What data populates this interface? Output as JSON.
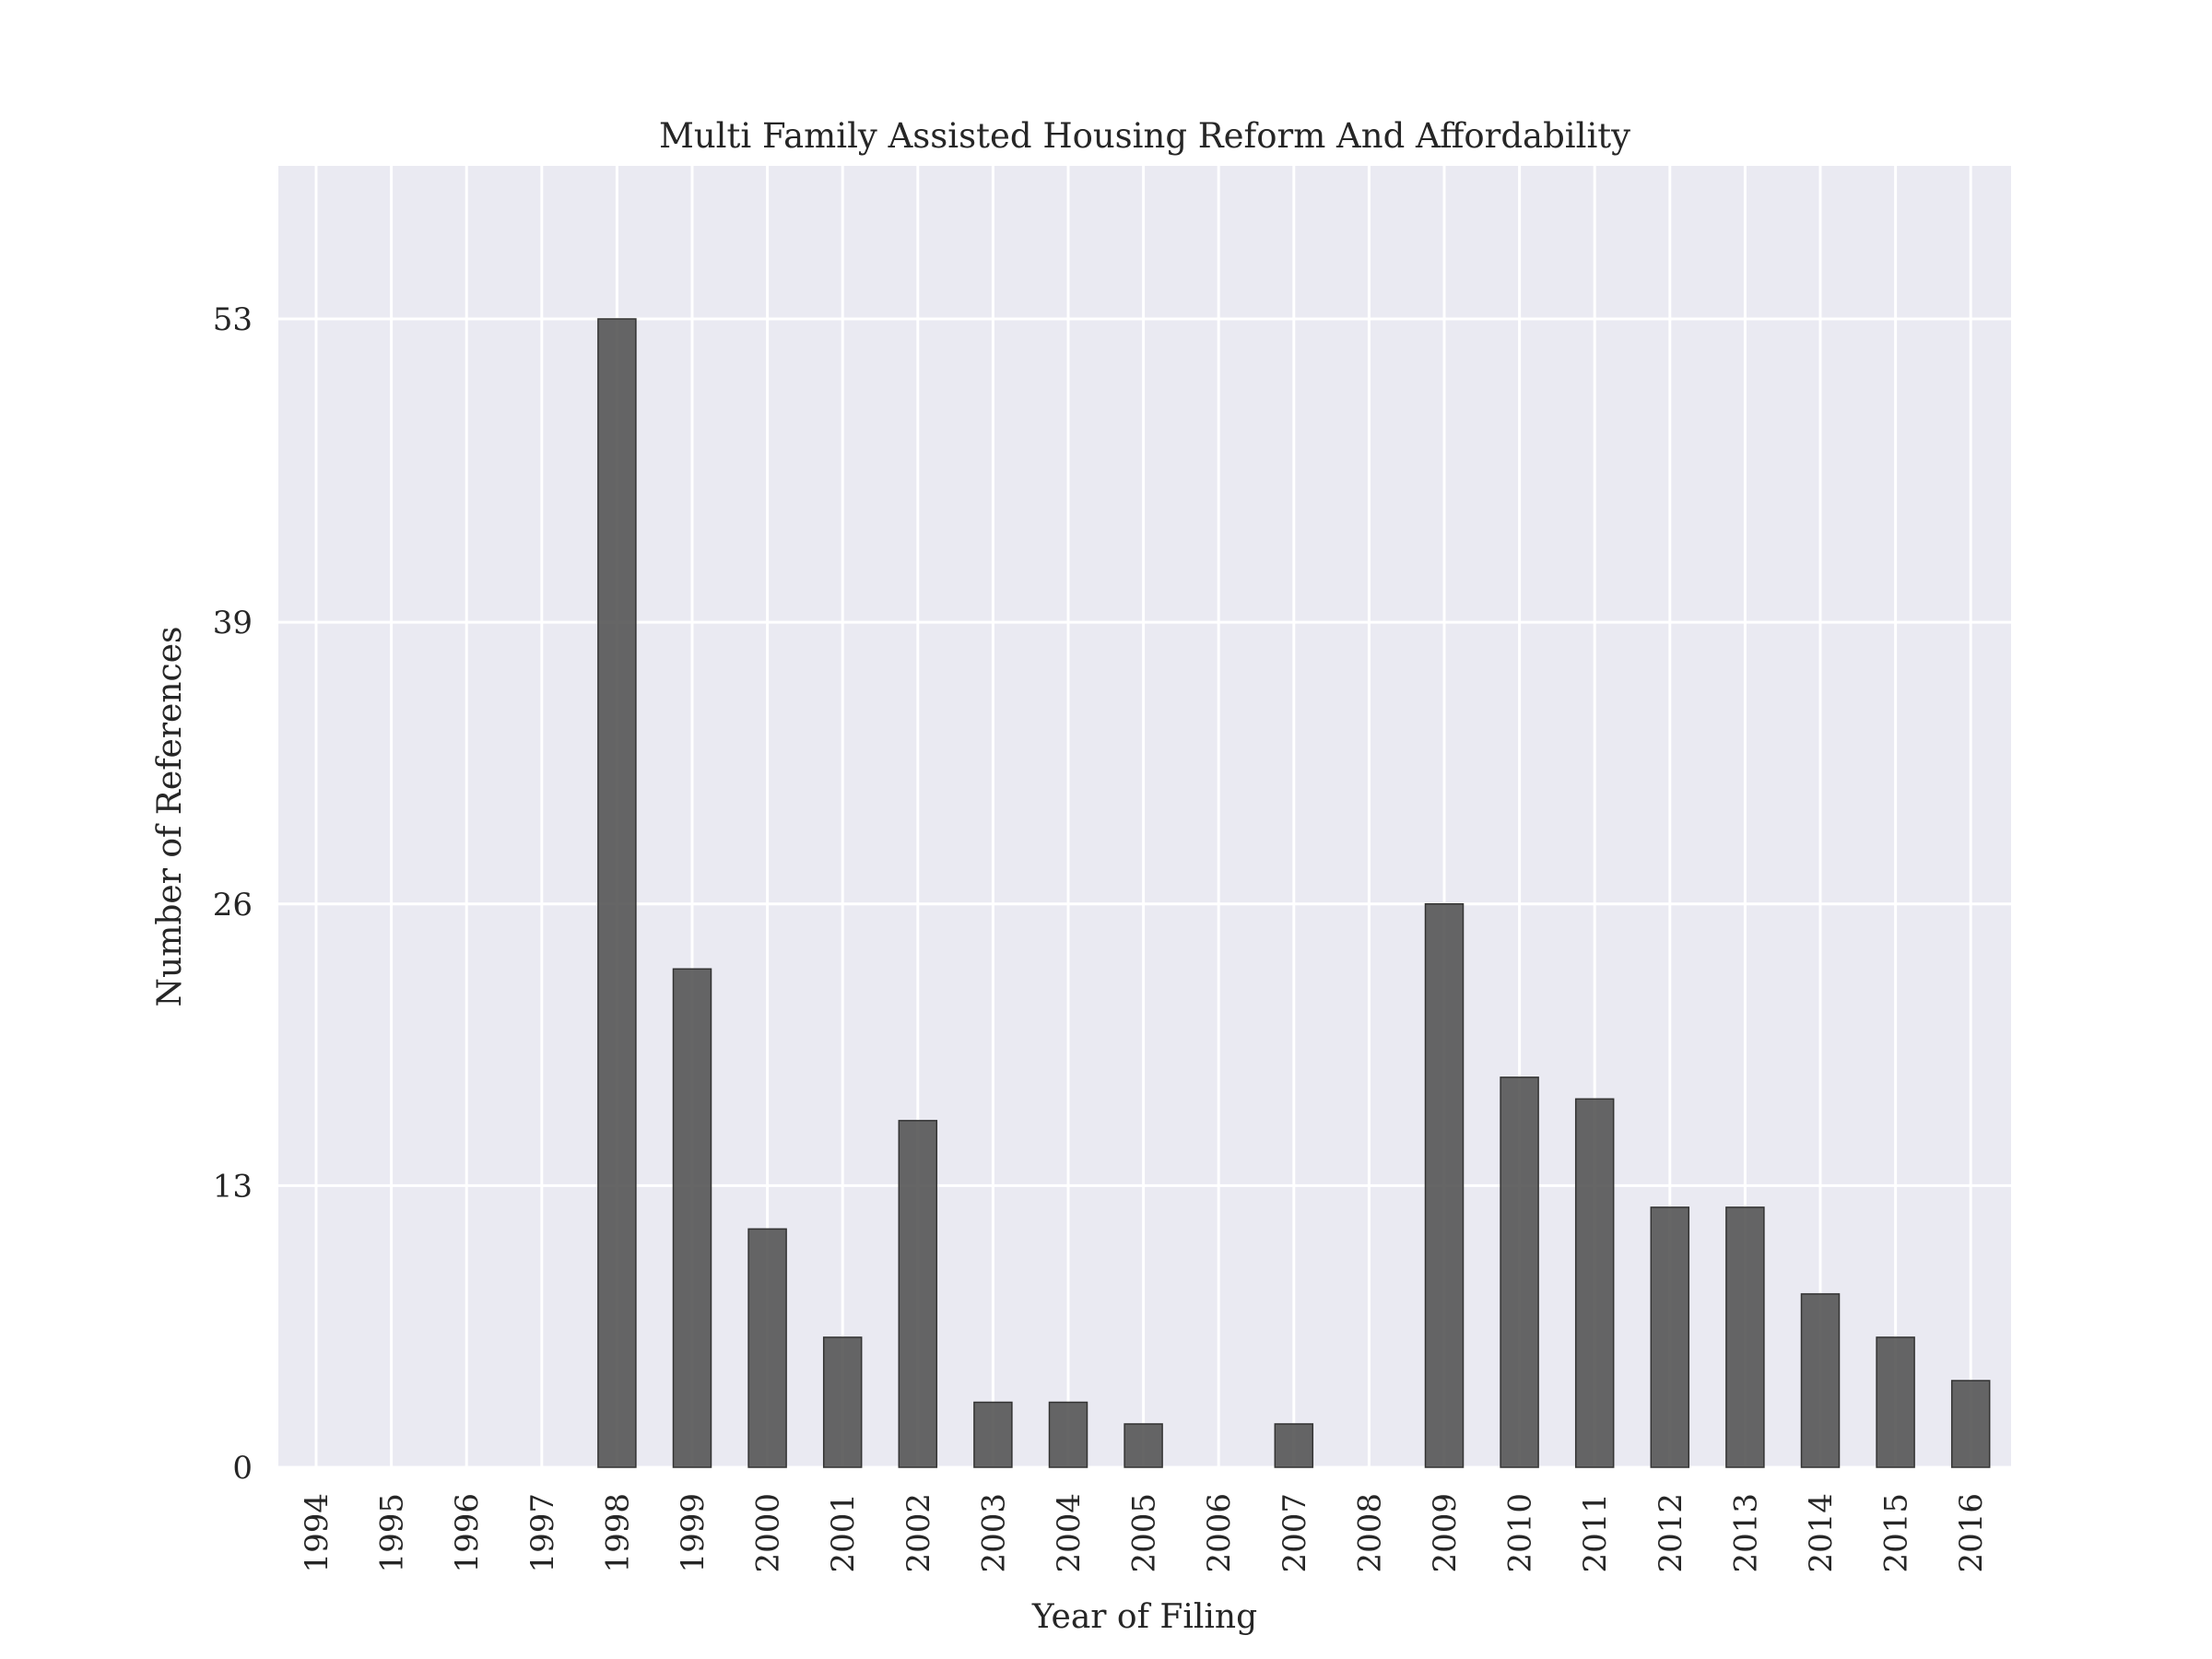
{
  "chart_data": {
    "type": "bar",
    "title": "Multi Family Assisted Housing Reform And Affordability",
    "xlabel": "Year of Filing",
    "ylabel": "Number of References",
    "categories": [
      "1994",
      "1995",
      "1996",
      "1997",
      "1998",
      "1999",
      "2000",
      "2001",
      "2002",
      "2003",
      "2004",
      "2005",
      "2006",
      "2007",
      "2008",
      "2009",
      "2010",
      "2011",
      "2012",
      "2013",
      "2014",
      "2015",
      "2016"
    ],
    "values": [
      0,
      0,
      0,
      0,
      53,
      23,
      11,
      6,
      16,
      3,
      3,
      2,
      0,
      2,
      0,
      26,
      18,
      17,
      12,
      12,
      8,
      6,
      4
    ],
    "yticks": [
      0,
      13,
      26,
      39,
      53
    ],
    "ylim": [
      0,
      60
    ],
    "grid": true,
    "legend": "none",
    "colors": {
      "bar": "#555555",
      "bar_edge": "#333333",
      "plot_background": "#eaeaf2",
      "grid": "#ffffff",
      "text": "#262626"
    }
  }
}
